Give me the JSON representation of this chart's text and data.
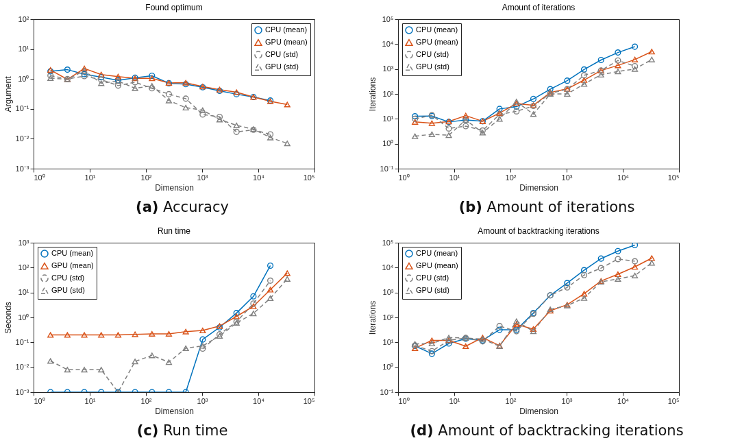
{
  "chart_data": [
    {
      "type": "line",
      "title": "Found optimum",
      "xlabel": "Dimension",
      "ylabel": "Argument",
      "annotations": [
        "(a) Accuracy"
      ],
      "log": "xy",
      "legend": "top right",
      "grid": false,
      "x": [
        2,
        4,
        8,
        16,
        32,
        64,
        128,
        256,
        512,
        1024,
        2048,
        4096,
        8192,
        16384,
        32768
      ],
      "xlim": [
        1,
        100000
      ],
      "xticks": [
        {
          "value": 1,
          "label": "10⁰"
        },
        {
          "value": 10,
          "label": "10¹"
        },
        {
          "value": 100,
          "label": "10²"
        },
        {
          "value": 1000,
          "label": "10³"
        },
        {
          "value": 10000,
          "label": "10⁴"
        },
        {
          "value": 100000,
          "label": "10⁵"
        }
      ],
      "ylim": [
        0.001,
        100
      ],
      "yticks": [
        {
          "value": 0.001,
          "label": "10⁻³"
        },
        {
          "value": 0.01,
          "label": "10⁻²"
        },
        {
          "value": 0.1,
          "label": "10⁻¹"
        },
        {
          "value": 1,
          "label": "10⁰"
        },
        {
          "value": 10,
          "label": "10¹"
        },
        {
          "value": 100,
          "label": "10²"
        }
      ],
      "series": [
        {
          "name": "CPU (mean)",
          "color": "#0072bd",
          "marker": "circle",
          "line_style": "solid",
          "values": [
            1.8,
            2.05,
            1.45,
            1.15,
            0.9,
            1.1,
            1.28,
            0.72,
            0.67,
            0.53,
            0.4,
            0.31,
            0.25,
            0.19,
            null
          ]
        },
        {
          "name": "GPU (mean)",
          "color": "#d95319",
          "marker": "triangle",
          "line_style": "solid",
          "values": [
            2.0,
            0.97,
            2.25,
            1.4,
            1.2,
            1.05,
            1.05,
            0.74,
            0.75,
            0.56,
            0.44,
            0.36,
            0.25,
            0.18,
            0.14
          ]
        },
        {
          "name": "CPU (std)",
          "color": "#808080",
          "marker": "circle",
          "line_style": "dashed",
          "values": [
            1.3,
            1.0,
            1.25,
            0.95,
            0.6,
            0.78,
            0.49,
            0.31,
            0.22,
            0.065,
            0.054,
            0.017,
            0.02,
            0.014,
            null
          ]
        },
        {
          "name": "GPU (std)",
          "color": "#808080",
          "marker": "triangle",
          "line_style": "dashed",
          "values": [
            1.07,
            0.97,
            1.9,
            0.72,
            0.85,
            0.49,
            0.59,
            0.19,
            0.11,
            0.09,
            0.044,
            0.028,
            0.021,
            0.011,
            0.007
          ]
        }
      ]
    },
    {
      "type": "line",
      "title": "Amount of iterations",
      "xlabel": "Dimension",
      "ylabel": "Iterations",
      "annotations": [
        "(b) Amount of iterations"
      ],
      "log": "xy",
      "legend": "top left",
      "grid": false,
      "x": [
        2,
        4,
        8,
        16,
        32,
        64,
        128,
        256,
        512,
        1024,
        2048,
        4096,
        8192,
        16384,
        32768
      ],
      "xlim": [
        1,
        100000
      ],
      "xticks": [
        {
          "value": 1,
          "label": "10⁰"
        },
        {
          "value": 10,
          "label": "10¹"
        },
        {
          "value": 100,
          "label": "10²"
        },
        {
          "value": 1000,
          "label": "10³"
        },
        {
          "value": 10000,
          "label": "10⁴"
        },
        {
          "value": 100000,
          "label": "10⁵"
        }
      ],
      "ylim": [
        0.1,
        100000
      ],
      "yticks": [
        {
          "value": 0.1,
          "label": "10⁻¹"
        },
        {
          "value": 1,
          "label": "10⁰"
        },
        {
          "value": 10,
          "label": "10¹"
        },
        {
          "value": 100,
          "label": "10²"
        },
        {
          "value": 1000,
          "label": "10³"
        },
        {
          "value": 10000,
          "label": "10⁴"
        },
        {
          "value": 100000,
          "label": "10⁵"
        }
      ],
      "series": [
        {
          "name": "CPU (mean)",
          "color": "#0072bd",
          "marker": "circle",
          "line_style": "solid",
          "values": [
            12.7,
            13,
            7.5,
            9,
            8,
            25,
            31,
            63,
            155,
            340,
            960,
            2300,
            4600,
            7900,
            null
          ]
        },
        {
          "name": "GPU (mean)",
          "color": "#d95319",
          "marker": "triangle",
          "line_style": "solid",
          "values": [
            7.5,
            6.7,
            7.8,
            13.5,
            8,
            17,
            41,
            35,
            113,
            160,
            360,
            870,
            1400,
            2400,
            5000
          ]
        },
        {
          "name": "CPU (std)",
          "color": "#808080",
          "marker": "circle",
          "line_style": "dashed",
          "values": [
            10,
            14,
            4.1,
            5.1,
            3.4,
            15,
            20,
            33,
            105,
            155,
            560,
            870,
            2200,
            1300,
            null
          ]
        },
        {
          "name": "GPU (std)",
          "color": "#808080",
          "marker": "triangle",
          "line_style": "dashed",
          "values": [
            2.0,
            2.4,
            2.2,
            9,
            2.8,
            10,
            49,
            15.5,
            100,
            100,
            250,
            590,
            800,
            1000,
            2400
          ]
        }
      ]
    },
    {
      "type": "line",
      "title": "Run time",
      "xlabel": "Dimension",
      "ylabel": "Seconds",
      "annotations": [
        "(c) Run time"
      ],
      "log": "xy",
      "legend": "top left",
      "grid": false,
      "x": [
        2,
        4,
        8,
        16,
        32,
        64,
        128,
        256,
        512,
        1024,
        2048,
        4096,
        8192,
        16384,
        32768
      ],
      "xlim": [
        1,
        100000
      ],
      "xticks": [
        {
          "value": 1,
          "label": "10⁰"
        },
        {
          "value": 10,
          "label": "10¹"
        },
        {
          "value": 100,
          "label": "10²"
        },
        {
          "value": 1000,
          "label": "10³"
        },
        {
          "value": 10000,
          "label": "10⁴"
        },
        {
          "value": 100000,
          "label": "10⁵"
        }
      ],
      "ylim": [
        0.001,
        1000
      ],
      "yticks": [
        {
          "value": 0.001,
          "label": "10⁻³"
        },
        {
          "value": 0.01,
          "label": "10⁻²"
        },
        {
          "value": 0.1,
          "label": "10⁻¹"
        },
        {
          "value": 1,
          "label": "10⁰"
        },
        {
          "value": 10,
          "label": "10¹"
        },
        {
          "value": 100,
          "label": "10²"
        },
        {
          "value": 1000,
          "label": "10³"
        }
      ],
      "series": [
        {
          "name": "CPU (mean)",
          "color": "#0072bd",
          "marker": "circle",
          "line_style": "solid",
          "values": [
            0.001,
            0.001,
            0.001,
            0.001,
            0.001,
            0.001,
            0.001,
            0.001,
            0.001,
            0.13,
            0.4,
            1.5,
            7,
            120,
            null
          ]
        },
        {
          "name": "GPU (mean)",
          "color": "#d95319",
          "marker": "triangle",
          "line_style": "solid",
          "values": [
            0.2,
            0.2,
            0.2,
            0.2,
            0.2,
            0.21,
            0.22,
            0.22,
            0.27,
            0.3,
            0.45,
            1.1,
            2.8,
            13,
            60
          ]
        },
        {
          "name": "CPU (std)",
          "color": "#808080",
          "marker": "circle",
          "line_style": "dashed",
          "values": [
            null,
            null,
            null,
            null,
            null,
            null,
            null,
            null,
            null,
            0.056,
            0.21,
            0.67,
            3.6,
            30,
            null
          ]
        },
        {
          "name": "GPU (std)",
          "color": "#808080",
          "marker": "triangle",
          "line_style": "dashed",
          "values": [
            0.018,
            0.008,
            0.008,
            0.008,
            0.001,
            0.017,
            0.03,
            0.016,
            0.058,
            0.072,
            0.18,
            0.6,
            1.45,
            5.9,
            35
          ]
        }
      ]
    },
    {
      "type": "line",
      "title": "Amount of backtracking iterations",
      "xlabel": "Dimension",
      "ylabel": "Iterations",
      "annotations": [
        "(d) Amount of backtracking iterations"
      ],
      "log": "xy",
      "legend": "top left",
      "grid": false,
      "x": [
        2,
        4,
        8,
        16,
        32,
        64,
        128,
        256,
        512,
        1024,
        2048,
        4096,
        8192,
        16384,
        32768
      ],
      "xlim": [
        1,
        100000
      ],
      "xticks": [
        {
          "value": 1,
          "label": "10⁰"
        },
        {
          "value": 10,
          "label": "10¹"
        },
        {
          "value": 100,
          "label": "10²"
        },
        {
          "value": 1000,
          "label": "10³"
        },
        {
          "value": 10000,
          "label": "10⁴"
        },
        {
          "value": 100000,
          "label": "10⁵"
        }
      ],
      "ylim": [
        0.1,
        100000
      ],
      "yticks": [
        {
          "value": 0.1,
          "label": "10⁻¹"
        },
        {
          "value": 1,
          "label": "10⁰"
        },
        {
          "value": 10,
          "label": "10¹"
        },
        {
          "value": 100,
          "label": "10²"
        },
        {
          "value": 1000,
          "label": "10³"
        },
        {
          "value": 10000,
          "label": "10⁴"
        },
        {
          "value": 100000,
          "label": "10⁵"
        }
      ],
      "series": [
        {
          "name": "CPU (mean)",
          "color": "#0072bd",
          "marker": "circle",
          "line_style": "solid",
          "values": [
            7.2,
            3.5,
            9,
            14,
            12,
            32,
            32,
            150,
            770,
            2400,
            7900,
            23000,
            46000,
            80000,
            null
          ]
        },
        {
          "name": "GPU (mean)",
          "color": "#d95319",
          "marker": "triangle",
          "line_style": "solid",
          "values": [
            5.8,
            12,
            12,
            7,
            15.5,
            7.4,
            52,
            34,
            185,
            325,
            900,
            2900,
            5400,
            10700,
            24000
          ]
        },
        {
          "name": "CPU (std)",
          "color": "#808080",
          "marker": "circle",
          "line_style": "dashed",
          "values": [
            7.5,
            4.4,
            12,
            15,
            11,
            45,
            28,
            140,
            770,
            1600,
            5000,
            9500,
            22000,
            18000,
            null
          ]
        },
        {
          "name": "GPU (std)",
          "color": "#808080",
          "marker": "triangle",
          "line_style": "dashed",
          "values": [
            8.6,
            9,
            15.5,
            15,
            13.5,
            7,
            70,
            28,
            210,
            300,
            600,
            2700,
            3500,
            4800,
            15500
          ]
        }
      ]
    }
  ]
}
